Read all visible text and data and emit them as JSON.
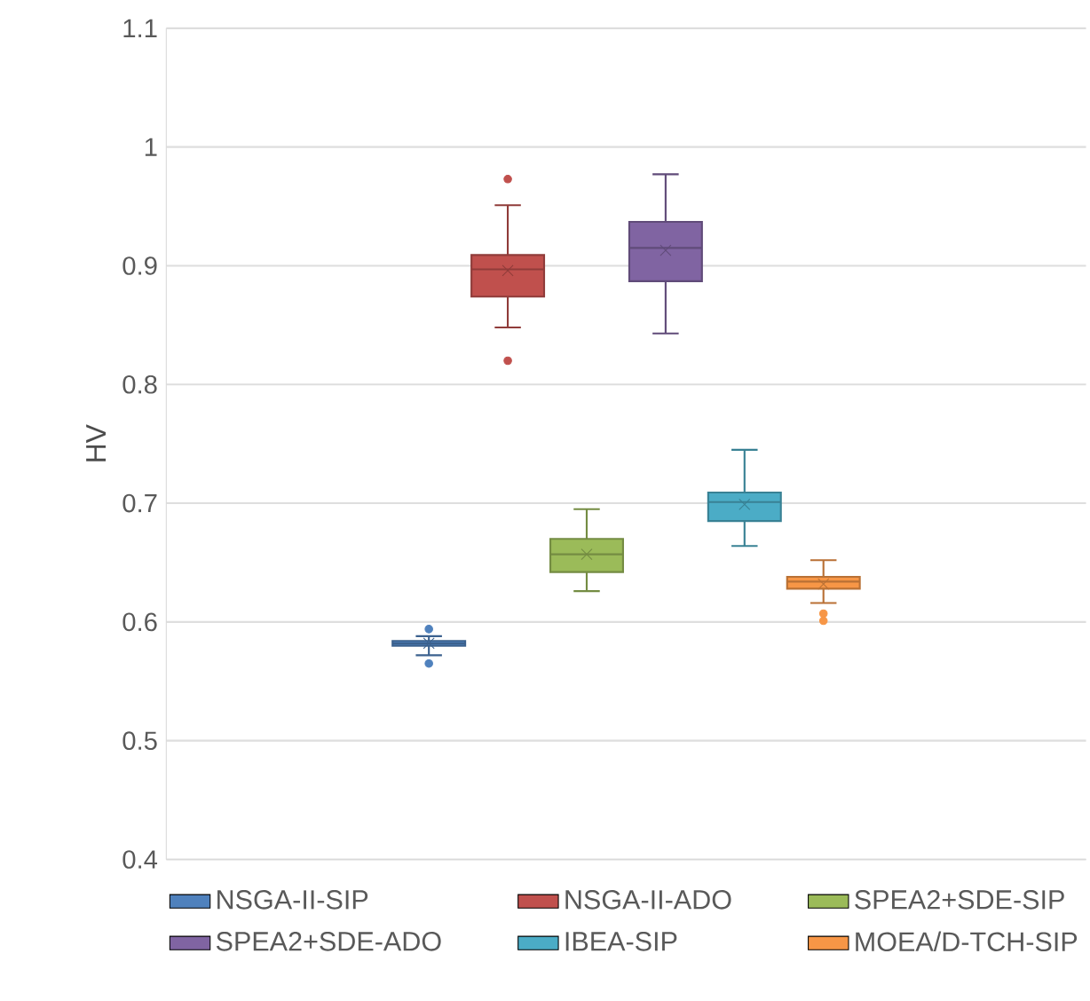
{
  "chart_data": {
    "type": "box",
    "ylabel": "HV",
    "categories": [
      null
    ],
    "ylim": [
      0.4,
      1.1
    ],
    "yticks": [
      0.4,
      0.5,
      0.6,
      0.7,
      0.8,
      0.9,
      1,
      1.1
    ],
    "grid": "y",
    "legend": "bottom",
    "tick_labels": "y",
    "series": [
      {
        "name": "NSGA-II-SIP",
        "color": "#4f81bd",
        "boxes": [
          {
            "low": 0.572,
            "q1": 0.58,
            "median": 0.582,
            "q3": 0.584,
            "high": 0.588,
            "mean": 0.582,
            "outliers": [
              0.594,
              0.565
            ]
          }
        ]
      },
      {
        "name": "NSGA-II-ADO",
        "color": "#c0504d",
        "boxes": [
          {
            "low": 0.848,
            "q1": 0.874,
            "median": 0.897,
            "q3": 0.909,
            "high": 0.951,
            "mean": 0.896,
            "outliers": [
              0.973,
              0.82
            ]
          }
        ]
      },
      {
        "name": "SPEA2+SDE-SIP",
        "color": "#9bbb59",
        "boxes": [
          {
            "low": 0.626,
            "q1": 0.642,
            "median": 0.657,
            "q3": 0.67,
            "high": 0.695,
            "mean": 0.657
          }
        ]
      },
      {
        "name": "SPEA2+SDE-ADO",
        "color": "#8064a2",
        "boxes": [
          {
            "low": 0.843,
            "q1": 0.887,
            "median": 0.915,
            "q3": 0.937,
            "high": 0.977,
            "mean": 0.913
          }
        ]
      },
      {
        "name": "IBEA-SIP",
        "color": "#4bacc6",
        "boxes": [
          {
            "low": 0.664,
            "q1": 0.685,
            "median": 0.701,
            "q3": 0.709,
            "high": 0.745,
            "mean": 0.699
          }
        ]
      },
      {
        "name": "MOEA/D-TCH-SIP",
        "color": "#f79646",
        "boxes": [
          {
            "low": 0.616,
            "q1": 0.628,
            "median": 0.634,
            "q3": 0.638,
            "high": 0.652,
            "mean": 0.632,
            "outliers": [
              0.607,
              0.601
            ]
          }
        ]
      }
    ]
  }
}
